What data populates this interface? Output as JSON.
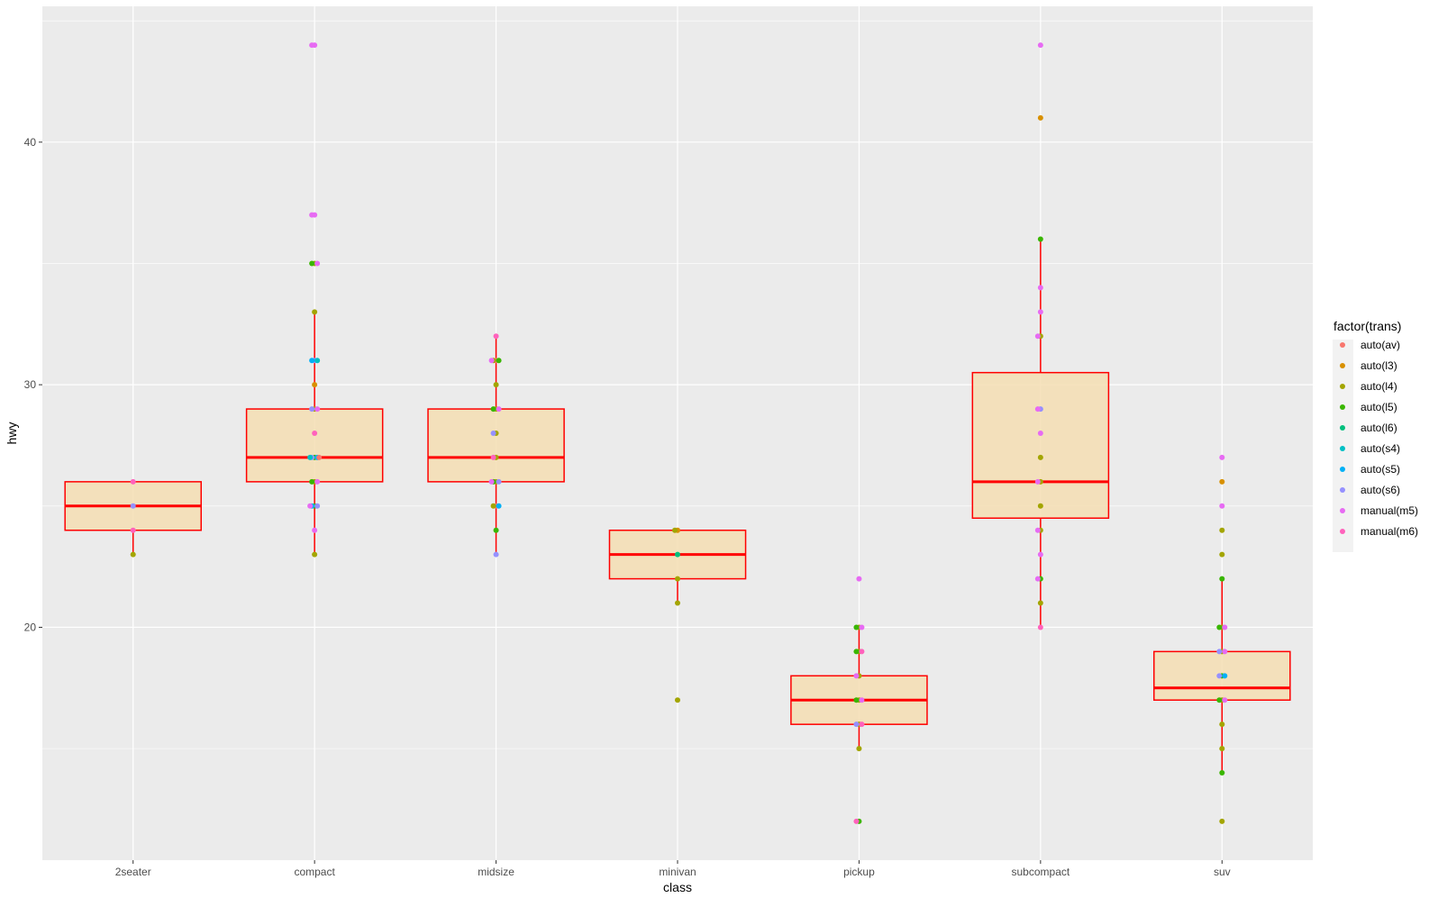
{
  "chart_data": {
    "type": "boxplot",
    "title": "",
    "xlabel": "class",
    "ylabel": "hwy",
    "ylim": [
      10.4,
      45.6
    ],
    "yticks": [
      20,
      30,
      40
    ],
    "categories": [
      "2seater",
      "compact",
      "midsize",
      "minivan",
      "pickup",
      "subcompact",
      "suv"
    ],
    "colors": {
      "panel": "#ebebeb",
      "grid": "#ffffff",
      "box_fill": "#f5deb3",
      "box_line": "#ff0000"
    },
    "boxes": [
      {
        "category": "2seater",
        "lower": 23,
        "q1": 24,
        "median": 25,
        "q3": 26,
        "upper": 26
      },
      {
        "category": "compact",
        "lower": 23,
        "q1": 26,
        "median": 27,
        "q3": 29,
        "upper": 33
      },
      {
        "category": "midsize",
        "lower": 23,
        "q1": 26,
        "median": 27,
        "q3": 29,
        "upper": 32
      },
      {
        "category": "minivan",
        "lower": 21,
        "q1": 22,
        "median": 23,
        "q3": 24,
        "upper": 24
      },
      {
        "category": "pickup",
        "lower": 15,
        "q1": 16,
        "median": 17,
        "q3": 18,
        "upper": 20
      },
      {
        "category": "subcompact",
        "lower": 20,
        "q1": 24.5,
        "median": 26,
        "q3": 30.5,
        "upper": 36
      },
      {
        "category": "suv",
        "lower": 14,
        "q1": 17,
        "median": 17.5,
        "q3": 19,
        "upper": 22
      }
    ],
    "legend": {
      "title": "factor(trans)",
      "position": "right",
      "entries": [
        {
          "label": "auto(av)",
          "color": "#f8766d"
        },
        {
          "label": "auto(l3)",
          "color": "#d89000"
        },
        {
          "label": "auto(l4)",
          "color": "#a3a500"
        },
        {
          "label": "auto(l5)",
          "color": "#39b600"
        },
        {
          "label": "auto(l6)",
          "color": "#00bf7d"
        },
        {
          "label": "auto(s4)",
          "color": "#00bfc4"
        },
        {
          "label": "auto(s5)",
          "color": "#00b0f6"
        },
        {
          "label": "auto(s6)",
          "color": "#9590ff"
        },
        {
          "label": "manual(m5)",
          "color": "#e76bf3"
        },
        {
          "label": "manual(m6)",
          "color": "#ff62bc"
        }
      ]
    },
    "points": [
      {
        "category": "2seater",
        "hwy": 26,
        "trans": "manual(m6)"
      },
      {
        "category": "2seater",
        "hwy": 25,
        "trans": "auto(s6)"
      },
      {
        "category": "2seater",
        "hwy": 24,
        "trans": "manual(m6)"
      },
      {
        "category": "2seater",
        "hwy": 23,
        "trans": "auto(l4)"
      },
      {
        "category": "compact",
        "hwy": 44,
        "trans": "manual(m5)"
      },
      {
        "category": "compact",
        "hwy": 44,
        "trans": "manual(m5)"
      },
      {
        "category": "compact",
        "hwy": 37,
        "trans": "manual(m5)"
      },
      {
        "category": "compact",
        "hwy": 37,
        "trans": "manual(m5)"
      },
      {
        "category": "compact",
        "hwy": 35,
        "trans": "auto(l4)"
      },
      {
        "category": "compact",
        "hwy": 35,
        "trans": "auto(l5)"
      },
      {
        "category": "compact",
        "hwy": 35,
        "trans": "manual(m5)"
      },
      {
        "category": "compact",
        "hwy": 33,
        "trans": "auto(l4)"
      },
      {
        "category": "compact",
        "hwy": 31,
        "trans": "auto(s6)"
      },
      {
        "category": "compact",
        "hwy": 31,
        "trans": "auto(s5)"
      },
      {
        "category": "compact",
        "hwy": 31,
        "trans": "auto(s4)"
      },
      {
        "category": "compact",
        "hwy": 30,
        "trans": "auto(l3)"
      },
      {
        "category": "compact",
        "hwy": 29,
        "trans": "auto(l4)"
      },
      {
        "category": "compact",
        "hwy": 29,
        "trans": "auto(s6)"
      },
      {
        "category": "compact",
        "hwy": 29,
        "trans": "manual(m5)"
      },
      {
        "category": "compact",
        "hwy": 28,
        "trans": "manual(m6)"
      },
      {
        "category": "compact",
        "hwy": 27,
        "trans": "auto(l5)"
      },
      {
        "category": "compact",
        "hwy": 27,
        "trans": "auto(s6)"
      },
      {
        "category": "compact",
        "hwy": 27,
        "trans": "auto(s5)"
      },
      {
        "category": "compact",
        "hwy": 27,
        "trans": "auto(s4)"
      },
      {
        "category": "compact",
        "hwy": 27,
        "trans": "auto(av)"
      },
      {
        "category": "compact",
        "hwy": 26,
        "trans": "auto(l4)"
      },
      {
        "category": "compact",
        "hwy": 26,
        "trans": "auto(l5)"
      },
      {
        "category": "compact",
        "hwy": 26,
        "trans": "manual(m5)"
      },
      {
        "category": "compact",
        "hwy": 25,
        "trans": "auto(l5)"
      },
      {
        "category": "compact",
        "hwy": 25,
        "trans": "auto(s5)"
      },
      {
        "category": "compact",
        "hwy": 25,
        "trans": "auto(s6)"
      },
      {
        "category": "compact",
        "hwy": 25,
        "trans": "manual(m5)"
      },
      {
        "category": "compact",
        "hwy": 24,
        "trans": "manual(m5)"
      },
      {
        "category": "compact",
        "hwy": 23,
        "trans": "auto(l4)"
      },
      {
        "category": "midsize",
        "hwy": 32,
        "trans": "manual(m6)"
      },
      {
        "category": "midsize",
        "hwy": 31,
        "trans": "auto(av)"
      },
      {
        "category": "midsize",
        "hwy": 31,
        "trans": "auto(l4)"
      },
      {
        "category": "midsize",
        "hwy": 31,
        "trans": "auto(l5)"
      },
      {
        "category": "midsize",
        "hwy": 31,
        "trans": "manual(m5)"
      },
      {
        "category": "midsize",
        "hwy": 30,
        "trans": "auto(l4)"
      },
      {
        "category": "midsize",
        "hwy": 29,
        "trans": "auto(l4)"
      },
      {
        "category": "midsize",
        "hwy": 29,
        "trans": "auto(l5)"
      },
      {
        "category": "midsize",
        "hwy": 29,
        "trans": "manual(m5)"
      },
      {
        "category": "midsize",
        "hwy": 28,
        "trans": "auto(l4)"
      },
      {
        "category": "midsize",
        "hwy": 28,
        "trans": "auto(s6)"
      },
      {
        "category": "midsize",
        "hwy": 27,
        "trans": "auto(l4)"
      },
      {
        "category": "midsize",
        "hwy": 27,
        "trans": "manual(m6)"
      },
      {
        "category": "midsize",
        "hwy": 26,
        "trans": "auto(l4)"
      },
      {
        "category": "midsize",
        "hwy": 26,
        "trans": "auto(l5)"
      },
      {
        "category": "midsize",
        "hwy": 26,
        "trans": "auto(s6)"
      },
      {
        "category": "midsize",
        "hwy": 26,
        "trans": "manual(m5)"
      },
      {
        "category": "midsize",
        "hwy": 25,
        "trans": "auto(av)"
      },
      {
        "category": "midsize",
        "hwy": 25,
        "trans": "auto(l4)"
      },
      {
        "category": "midsize",
        "hwy": 25,
        "trans": "auto(s5)"
      },
      {
        "category": "midsize",
        "hwy": 24,
        "trans": "auto(l5)"
      },
      {
        "category": "midsize",
        "hwy": 23,
        "trans": "auto(s6)"
      },
      {
        "category": "minivan",
        "hwy": 24,
        "trans": "auto(l3)"
      },
      {
        "category": "minivan",
        "hwy": 24,
        "trans": "auto(l4)"
      },
      {
        "category": "minivan",
        "hwy": 23,
        "trans": "auto(l6)"
      },
      {
        "category": "minivan",
        "hwy": 22,
        "trans": "auto(l4)"
      },
      {
        "category": "minivan",
        "hwy": 21,
        "trans": "auto(l4)"
      },
      {
        "category": "minivan",
        "hwy": 17,
        "trans": "auto(l4)"
      },
      {
        "category": "pickup",
        "hwy": 22,
        "trans": "manual(m5)"
      },
      {
        "category": "pickup",
        "hwy": 20,
        "trans": "auto(l4)"
      },
      {
        "category": "pickup",
        "hwy": 20,
        "trans": "auto(l5)"
      },
      {
        "category": "pickup",
        "hwy": 20,
        "trans": "manual(m5)"
      },
      {
        "category": "pickup",
        "hwy": 19,
        "trans": "auto(l4)"
      },
      {
        "category": "pickup",
        "hwy": 19,
        "trans": "auto(l5)"
      },
      {
        "category": "pickup",
        "hwy": 19,
        "trans": "manual(m6)"
      },
      {
        "category": "pickup",
        "hwy": 18,
        "trans": "auto(l4)"
      },
      {
        "category": "pickup",
        "hwy": 18,
        "trans": "manual(m5)"
      },
      {
        "category": "pickup",
        "hwy": 17,
        "trans": "auto(l4)"
      },
      {
        "category": "pickup",
        "hwy": 17,
        "trans": "auto(l5)"
      },
      {
        "category": "pickup",
        "hwy": 17,
        "trans": "manual(m5)"
      },
      {
        "category": "pickup",
        "hwy": 16,
        "trans": "auto(l4)"
      },
      {
        "category": "pickup",
        "hwy": 16,
        "trans": "auto(s6)"
      },
      {
        "category": "pickup",
        "hwy": 16,
        "trans": "manual(m6)"
      },
      {
        "category": "pickup",
        "hwy": 15,
        "trans": "auto(l4)"
      },
      {
        "category": "pickup",
        "hwy": 12,
        "trans": "auto(l5)"
      },
      {
        "category": "pickup",
        "hwy": 12,
        "trans": "manual(m6)"
      },
      {
        "category": "subcompact",
        "hwy": 44,
        "trans": "manual(m5)"
      },
      {
        "category": "subcompact",
        "hwy": 41,
        "trans": "auto(l3)"
      },
      {
        "category": "subcompact",
        "hwy": 36,
        "trans": "auto(l5)"
      },
      {
        "category": "subcompact",
        "hwy": 34,
        "trans": "manual(m5)"
      },
      {
        "category": "subcompact",
        "hwy": 33,
        "trans": "manual(m5)"
      },
      {
        "category": "subcompact",
        "hwy": 32,
        "trans": "auto(l4)"
      },
      {
        "category": "subcompact",
        "hwy": 32,
        "trans": "manual(m5)"
      },
      {
        "category": "subcompact",
        "hwy": 29,
        "trans": "auto(s6)"
      },
      {
        "category": "subcompact",
        "hwy": 29,
        "trans": "manual(m5)"
      },
      {
        "category": "subcompact",
        "hwy": 28,
        "trans": "manual(m5)"
      },
      {
        "category": "subcompact",
        "hwy": 27,
        "trans": "auto(l4)"
      },
      {
        "category": "subcompact",
        "hwy": 26,
        "trans": "auto(l4)"
      },
      {
        "category": "subcompact",
        "hwy": 26,
        "trans": "manual(m5)"
      },
      {
        "category": "subcompact",
        "hwy": 25,
        "trans": "auto(l4)"
      },
      {
        "category": "subcompact",
        "hwy": 24,
        "trans": "auto(l4)"
      },
      {
        "category": "subcompact",
        "hwy": 24,
        "trans": "manual(m5)"
      },
      {
        "category": "subcompact",
        "hwy": 23,
        "trans": "manual(m5)"
      },
      {
        "category": "subcompact",
        "hwy": 22,
        "trans": "auto(l5)"
      },
      {
        "category": "subcompact",
        "hwy": 22,
        "trans": "manual(m5)"
      },
      {
        "category": "subcompact",
        "hwy": 21,
        "trans": "auto(l4)"
      },
      {
        "category": "subcompact",
        "hwy": 20,
        "trans": "manual(m6)"
      },
      {
        "category": "suv",
        "hwy": 27,
        "trans": "manual(m5)"
      },
      {
        "category": "suv",
        "hwy": 26,
        "trans": "auto(l3)"
      },
      {
        "category": "suv",
        "hwy": 25,
        "trans": "manual(m5)"
      },
      {
        "category": "suv",
        "hwy": 24,
        "trans": "auto(l4)"
      },
      {
        "category": "suv",
        "hwy": 23,
        "trans": "auto(l4)"
      },
      {
        "category": "suv",
        "hwy": 22,
        "trans": "auto(l5)"
      },
      {
        "category": "suv",
        "hwy": 20,
        "trans": "auto(l4)"
      },
      {
        "category": "suv",
        "hwy": 20,
        "trans": "auto(l5)"
      },
      {
        "category": "suv",
        "hwy": 20,
        "trans": "manual(m5)"
      },
      {
        "category": "suv",
        "hwy": 19,
        "trans": "auto(l4)"
      },
      {
        "category": "suv",
        "hwy": 19,
        "trans": "auto(s6)"
      },
      {
        "category": "suv",
        "hwy": 19,
        "trans": "manual(m5)"
      },
      {
        "category": "suv",
        "hwy": 18,
        "trans": "auto(l5)"
      },
      {
        "category": "suv",
        "hwy": 18,
        "trans": "auto(s6)"
      },
      {
        "category": "suv",
        "hwy": 18,
        "trans": "auto(s5)"
      },
      {
        "category": "suv",
        "hwy": 17,
        "trans": "auto(l4)"
      },
      {
        "category": "suv",
        "hwy": 17,
        "trans": "auto(l5)"
      },
      {
        "category": "suv",
        "hwy": 17,
        "trans": "manual(m5)"
      },
      {
        "category": "suv",
        "hwy": 16,
        "trans": "auto(l4)"
      },
      {
        "category": "suv",
        "hwy": 15,
        "trans": "auto(l4)"
      },
      {
        "category": "suv",
        "hwy": 14,
        "trans": "auto(l5)"
      },
      {
        "category": "suv",
        "hwy": 12,
        "trans": "auto(l4)"
      }
    ]
  }
}
